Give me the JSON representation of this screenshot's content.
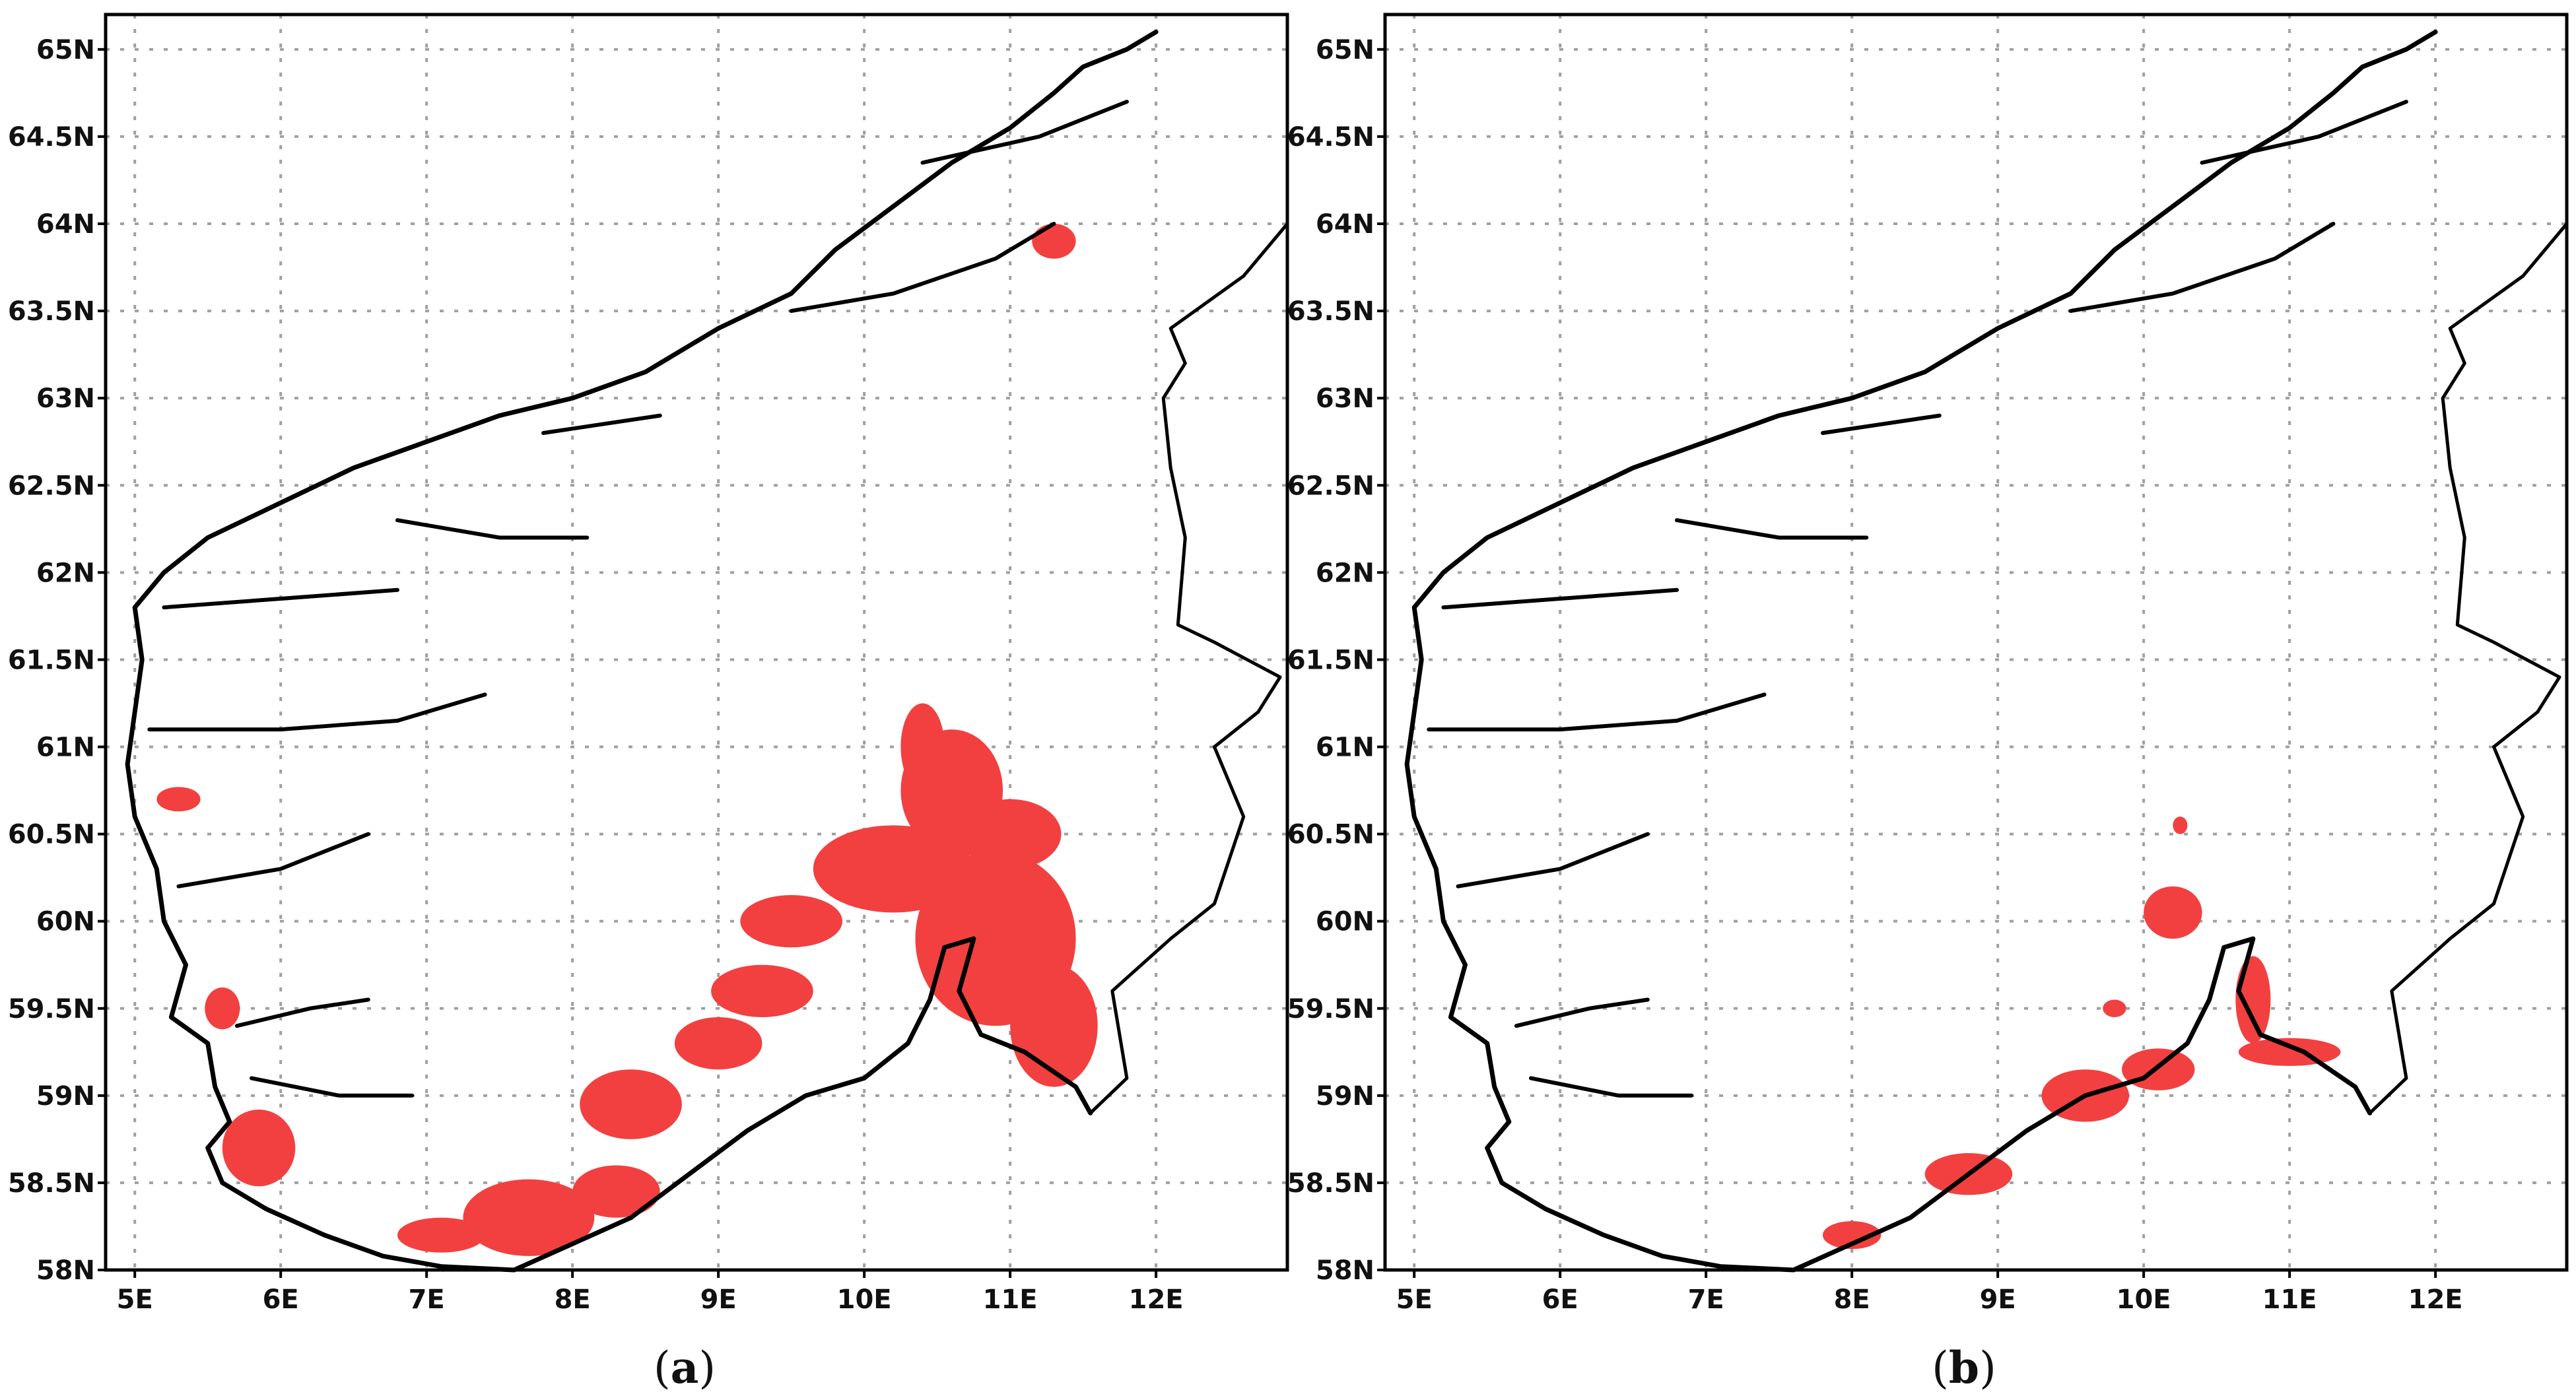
{
  "colors": {
    "highlight": "#f24040",
    "coast": "#000000",
    "grid": "#a0a0a0"
  },
  "axes": {
    "lon_range": [
      4.8,
      12.9
    ],
    "lat_range": [
      58.0,
      65.2
    ],
    "x_tick_labels": [
      "5E",
      "6E",
      "7E",
      "8E",
      "9E",
      "10E",
      "11E",
      "12E"
    ],
    "y_tick_labels": [
      "58N",
      "58.5N",
      "59N",
      "59.5N",
      "60N",
      "60.5N",
      "61N",
      "61.5N",
      "62N",
      "62.5N",
      "63N",
      "63.5N",
      "64N",
      "64.5N",
      "65N"
    ],
    "grid": "dotted"
  },
  "panels": [
    {
      "id": "a",
      "caption_open": "(",
      "caption_letter": "a",
      "caption_close": ")",
      "highlight_regions": [
        {
          "lon": 10.9,
          "lat": 59.9,
          "rx": 0.55,
          "ry": 0.5
        },
        {
          "lon": 11.3,
          "lat": 59.4,
          "rx": 0.3,
          "ry": 0.35
        },
        {
          "lon": 10.2,
          "lat": 60.3,
          "rx": 0.55,
          "ry": 0.25
        },
        {
          "lon": 10.6,
          "lat": 60.75,
          "rx": 0.35,
          "ry": 0.35
        },
        {
          "lon": 11.0,
          "lat": 60.5,
          "rx": 0.35,
          "ry": 0.2
        },
        {
          "lon": 9.5,
          "lat": 60.0,
          "rx": 0.35,
          "ry": 0.15
        },
        {
          "lon": 9.3,
          "lat": 59.6,
          "rx": 0.35,
          "ry": 0.15
        },
        {
          "lon": 9.0,
          "lat": 59.3,
          "rx": 0.3,
          "ry": 0.15
        },
        {
          "lon": 8.4,
          "lat": 58.95,
          "rx": 0.35,
          "ry": 0.2
        },
        {
          "lon": 7.7,
          "lat": 58.3,
          "rx": 0.45,
          "ry": 0.22
        },
        {
          "lon": 8.3,
          "lat": 58.45,
          "rx": 0.3,
          "ry": 0.15
        },
        {
          "lon": 7.1,
          "lat": 58.2,
          "rx": 0.3,
          "ry": 0.1
        },
        {
          "lon": 5.85,
          "lat": 58.7,
          "rx": 0.25,
          "ry": 0.22
        },
        {
          "lon": 5.6,
          "lat": 59.5,
          "rx": 0.12,
          "ry": 0.12
        },
        {
          "lon": 5.3,
          "lat": 60.7,
          "rx": 0.15,
          "ry": 0.07
        },
        {
          "lon": 11.3,
          "lat": 63.9,
          "rx": 0.15,
          "ry": 0.1
        },
        {
          "lon": 10.4,
          "lat": 61.0,
          "rx": 0.15,
          "ry": 0.25
        }
      ]
    },
    {
      "id": "b",
      "caption_open": "(",
      "caption_letter": "b",
      "caption_close": ")",
      "highlight_regions": [
        {
          "lon": 9.6,
          "lat": 59.0,
          "rx": 0.3,
          "ry": 0.15
        },
        {
          "lon": 10.1,
          "lat": 59.15,
          "rx": 0.25,
          "ry": 0.12
        },
        {
          "lon": 11.0,
          "lat": 59.25,
          "rx": 0.35,
          "ry": 0.08
        },
        {
          "lon": 10.75,
          "lat": 59.55,
          "rx": 0.12,
          "ry": 0.25
        },
        {
          "lon": 10.2,
          "lat": 60.05,
          "rx": 0.2,
          "ry": 0.15
        },
        {
          "lon": 8.8,
          "lat": 58.55,
          "rx": 0.3,
          "ry": 0.12
        },
        {
          "lon": 8.0,
          "lat": 58.2,
          "rx": 0.2,
          "ry": 0.08
        },
        {
          "lon": 9.8,
          "lat": 59.5,
          "rx": 0.08,
          "ry": 0.05
        },
        {
          "lon": 10.25,
          "lat": 60.55,
          "rx": 0.05,
          "ry": 0.05
        }
      ]
    }
  ]
}
